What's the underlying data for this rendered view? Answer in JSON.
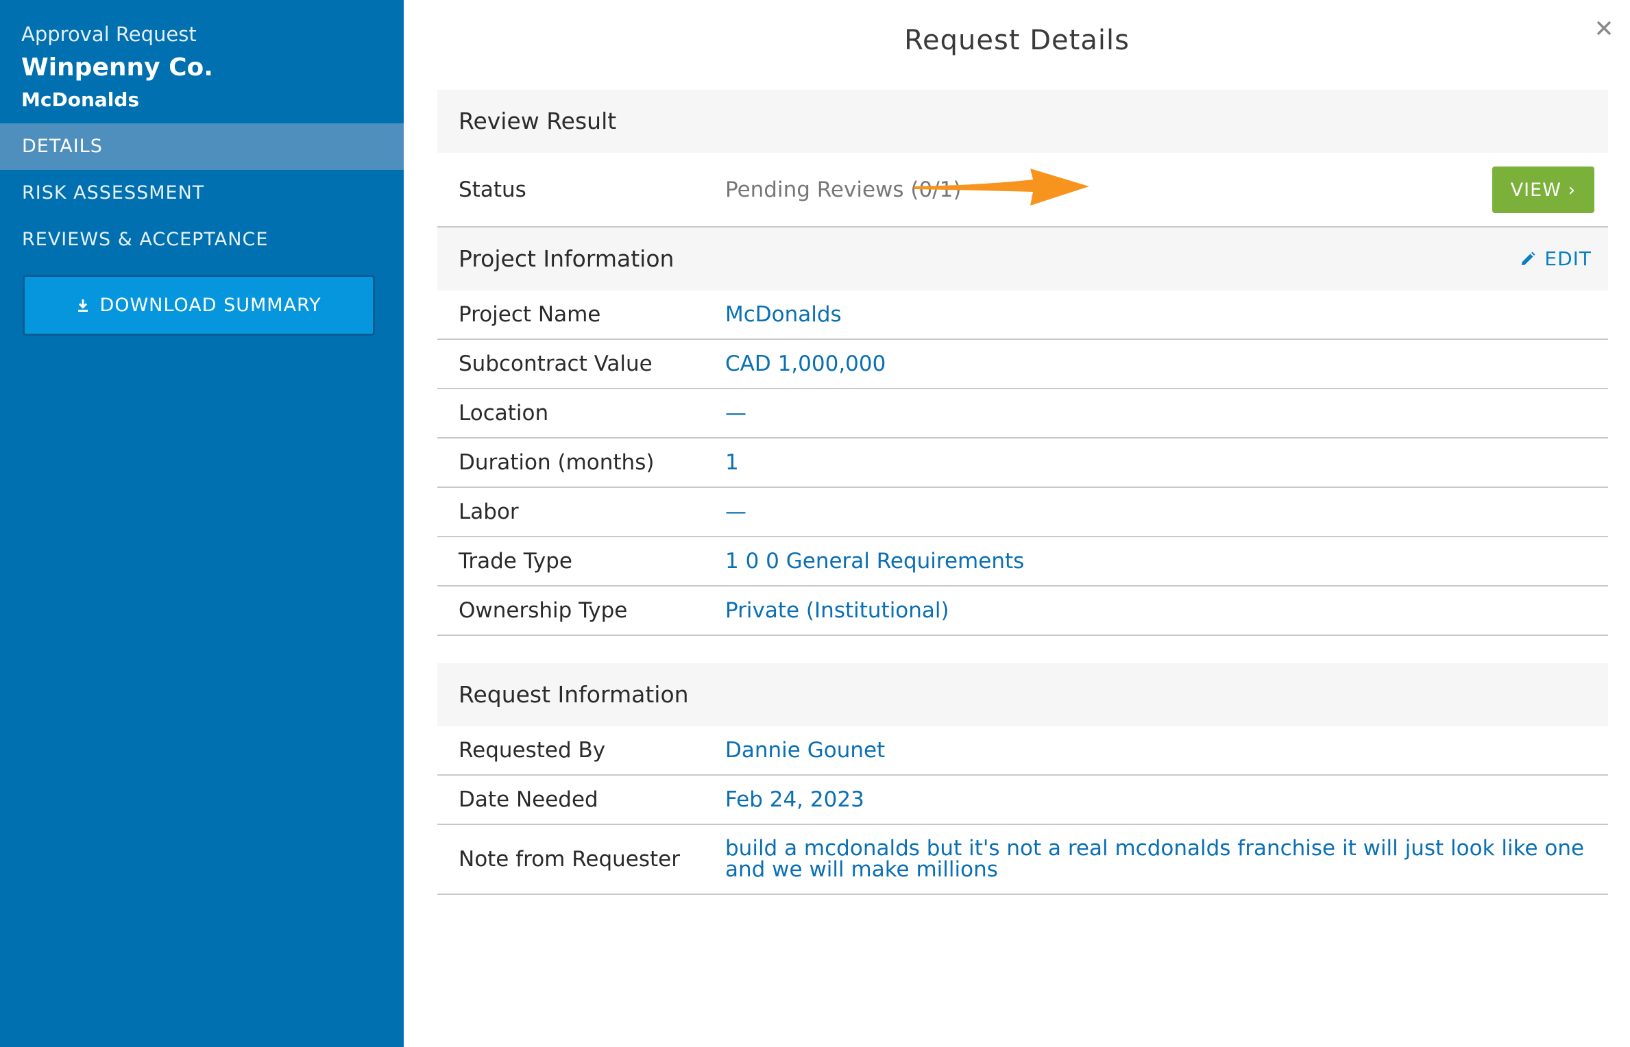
{
  "sidebar": {
    "caption": "Approval Request",
    "company": "Winpenny Co.",
    "project": "McDonalds",
    "nav": [
      {
        "label": "DETAILS",
        "active": true
      },
      {
        "label": "RISK ASSESSMENT",
        "active": false
      },
      {
        "label": "REVIEWS & ACCEPTANCE",
        "active": false
      }
    ],
    "download_label": "DOWNLOAD SUMMARY",
    "download_icon": "download-icon"
  },
  "main": {
    "title": "Request Details",
    "close_icon": "close-icon",
    "review": {
      "header": "Review Result",
      "status_label": "Status",
      "status_value": "Pending Reviews (0/1)",
      "view_label": "VIEW ›"
    },
    "project": {
      "header": "Project Information",
      "edit_label": "EDIT",
      "edit_icon": "pencil-icon",
      "rows": [
        {
          "label": "Project Name",
          "value": "McDonalds"
        },
        {
          "label": "Subcontract Value",
          "value": "CAD 1,000,000"
        },
        {
          "label": "Location",
          "value": "—"
        },
        {
          "label": "Duration (months)",
          "value": "1"
        },
        {
          "label": "Labor",
          "value": "—"
        },
        {
          "label": "Trade Type",
          "value": "1 0 0 General Requirements"
        },
        {
          "label": "Ownership Type",
          "value": "Private (Institutional)"
        }
      ]
    },
    "request": {
      "header": "Request Information",
      "rows": [
        {
          "label": "Requested By",
          "value": "Dannie Gounet"
        },
        {
          "label": "Date Needed",
          "value": "Feb 24, 2023"
        },
        {
          "label": "Note from Requester",
          "value": "build a mcdonalds but it's not a real mcdonalds franchise it will just look like one and we will make millions"
        }
      ]
    }
  },
  "colors": {
    "sidebar": "#0070b0",
    "nav_active": "#4f8fbe",
    "download_button": "#0696dd",
    "link": "#0a6fb3",
    "view_button": "#7bb13b",
    "annotation_arrow": "#f7941d"
  }
}
